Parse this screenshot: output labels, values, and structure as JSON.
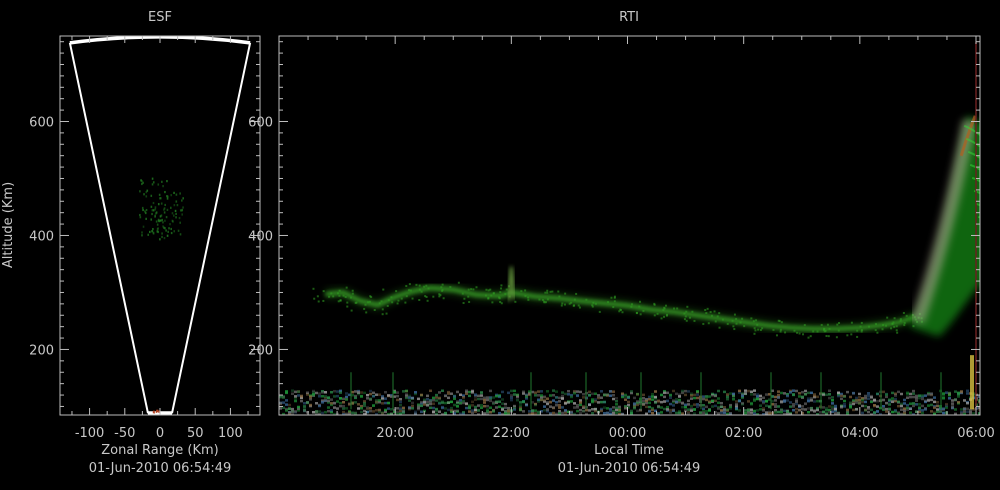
{
  "chart_data": [
    {
      "type": "scatter",
      "title": "ESF",
      "xlabel": "Zonal Range (Km)",
      "ylabel": "Altitude (Km)",
      "timestamp": "01-Jun-2010 06:54:49",
      "xlim": [
        -142,
        142
      ],
      "ylim": [
        85,
        750
      ],
      "xticks": [
        {
          "value": -100,
          "label": "-100"
        },
        {
          "value": -50,
          "label": "-50"
        },
        {
          "value": 0,
          "label": "0"
        },
        {
          "value": 50,
          "label": "50"
        },
        {
          "value": 100,
          "label": "100"
        }
      ],
      "yticks": [
        {
          "value": 200,
          "label": "200"
        },
        {
          "value": 400,
          "label": "400"
        },
        {
          "value": 600,
          "label": "600"
        }
      ],
      "beam_sector": {
        "apex_altitude": 88,
        "top_altitude": 745,
        "half_width_at_top": 128
      },
      "echo_clusters": [
        {
          "x": -10,
          "y_min": 400,
          "y_max": 505,
          "color": "#1e6e1e"
        },
        {
          "x": 12,
          "y_min": 395,
          "y_max": 480,
          "color": "#1e6e1e"
        },
        {
          "x": -5,
          "y_min": 90,
          "y_max": 98,
          "color": "#b04020"
        }
      ]
    },
    {
      "type": "heatmap",
      "title": "RTI",
      "xlabel": "Local Time",
      "timestamp": "01-Jun-2010 06:54:49",
      "xlim": [
        18.0,
        6.93
      ],
      "ylim": [
        85,
        750
      ],
      "xticks": [
        {
          "value": 20,
          "label": "20:00"
        },
        {
          "value": 22,
          "label": "22:00"
        },
        {
          "value": 24,
          "label": "00:00"
        },
        {
          "value": 26,
          "label": "02:00"
        },
        {
          "value": 28,
          "label": "04:00"
        },
        {
          "value": 30,
          "label": "06:00"
        }
      ],
      "yticks": [
        {
          "value": 200,
          "label": "200"
        },
        {
          "value": 400,
          "label": "400"
        },
        {
          "value": 600,
          "label": "600"
        }
      ],
      "bottom_layer_trace": [
        [
          18.8,
          297
        ],
        [
          19.1,
          300
        ],
        [
          19.4,
          285
        ],
        [
          19.7,
          278
        ],
        [
          20.0,
          292
        ],
        [
          20.3,
          302
        ],
        [
          20.6,
          308
        ],
        [
          21.0,
          305
        ],
        [
          21.4,
          296
        ],
        [
          21.8,
          294
        ],
        [
          22.0,
          300
        ],
        [
          22.4,
          293
        ],
        [
          22.8,
          290
        ],
        [
          23.2,
          285
        ],
        [
          23.6,
          281
        ],
        [
          24.0,
          277
        ],
        [
          24.4,
          270
        ],
        [
          24.8,
          266
        ],
        [
          25.2,
          260
        ],
        [
          25.6,
          254
        ],
        [
          26.0,
          248
        ],
        [
          26.4,
          242
        ],
        [
          26.8,
          238
        ],
        [
          27.2,
          236
        ],
        [
          27.6,
          236
        ],
        [
          28.0,
          238
        ],
        [
          28.4,
          243
        ],
        [
          28.7,
          248
        ],
        [
          28.95,
          258
        ]
      ],
      "plume_events": [
        {
          "time_start": 28.85,
          "time_end": 30.9,
          "altitude_min": 240,
          "altitude_max": 610,
          "color": "#22c822"
        }
      ],
      "low_altitude_clutter": {
        "altitude_min": 88,
        "altitude_max": 130
      }
    }
  ]
}
